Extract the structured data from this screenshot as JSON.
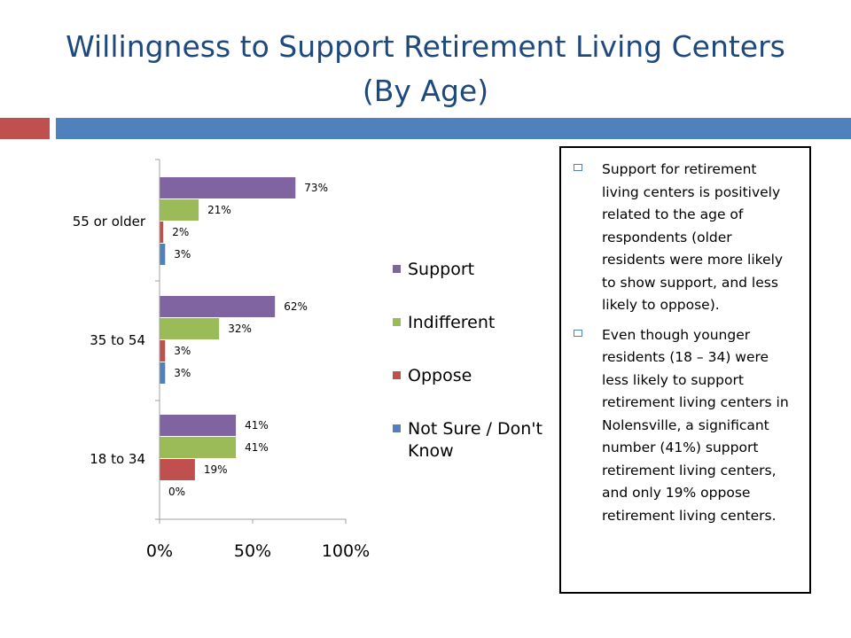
{
  "slide": {
    "title_line1": "Willingness to Support Retirement Living Centers",
    "title_line2": "(By Age)",
    "colors": {
      "title": "#1F497D",
      "accent_red": "#C0504D",
      "accent_blue": "#4F81BD"
    }
  },
  "textbox": {
    "bullets": [
      "Support for retirement living centers is positively related to the age of respondents (older residents were more likely to show support, and less likely to oppose).",
      "Even though younger residents (18 – 34) were less likely to support retirement living centers in Nolensville, a significant number (41%) support retirement living centers, and only 19% oppose retirement living centers."
    ],
    "bullet_icon": "square-bullet-icon"
  },
  "chart_data": {
    "type": "bar",
    "orientation": "horizontal",
    "categories": [
      "55 or older",
      "35 to 54",
      "18 to 34"
    ],
    "series": [
      {
        "name": "Support",
        "color": "#8064A2",
        "values": [
          73,
          62,
          41
        ]
      },
      {
        "name": "Indifferent",
        "color": "#9BBB59",
        "values": [
          21,
          32,
          41
        ]
      },
      {
        "name": "Oppose",
        "color": "#C0504D",
        "values": [
          2,
          3,
          19
        ]
      },
      {
        "name": "Not Sure / Don't Know",
        "color": "#4F81BD",
        "values": [
          3,
          3,
          0
        ]
      }
    ],
    "data_labels": [
      [
        "73%",
        "21%",
        "2%",
        "3%"
      ],
      [
        "62%",
        "32%",
        "3%",
        "3%"
      ],
      [
        "41%",
        "41%",
        "19%",
        "0%"
      ]
    ],
    "xticks": [
      "0%",
      "50%",
      "100%"
    ],
    "xlim": [
      0,
      100
    ],
    "legend_position": "right",
    "grid": false
  }
}
